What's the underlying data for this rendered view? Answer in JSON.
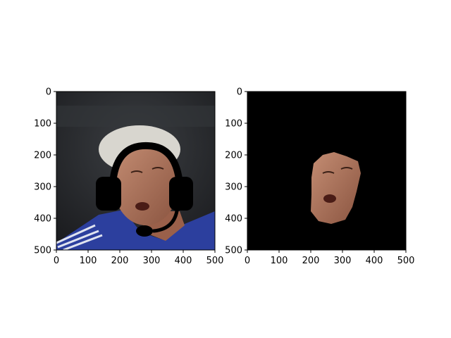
{
  "chart_data": [
    {
      "type": "image",
      "title": "",
      "xlabel": "",
      "ylabel": "",
      "xlim": [
        0,
        500
      ],
      "ylim": [
        500,
        0
      ],
      "xticks": [
        "0",
        "100",
        "200",
        "300",
        "400",
        "500"
      ],
      "yticks": [
        "0",
        "100",
        "200",
        "300",
        "400",
        "500"
      ],
      "grid": false
    },
    {
      "type": "image",
      "title": "",
      "xlabel": "",
      "ylabel": "",
      "xlim": [
        0,
        500
      ],
      "ylim": [
        500,
        0
      ],
      "xticks": [
        "0",
        "100",
        "200",
        "300",
        "400",
        "500"
      ],
      "yticks": [
        "0",
        "100",
        "200",
        "300",
        "400",
        "500"
      ],
      "grid": false
    }
  ],
  "colors": {
    "background_black": "#000000",
    "jersey_blue": "#2c3f9e",
    "skin": "#a36a52",
    "hair": "#d8d6cf",
    "headset": "#000000",
    "stadium_dark": "#2a2c2f"
  }
}
